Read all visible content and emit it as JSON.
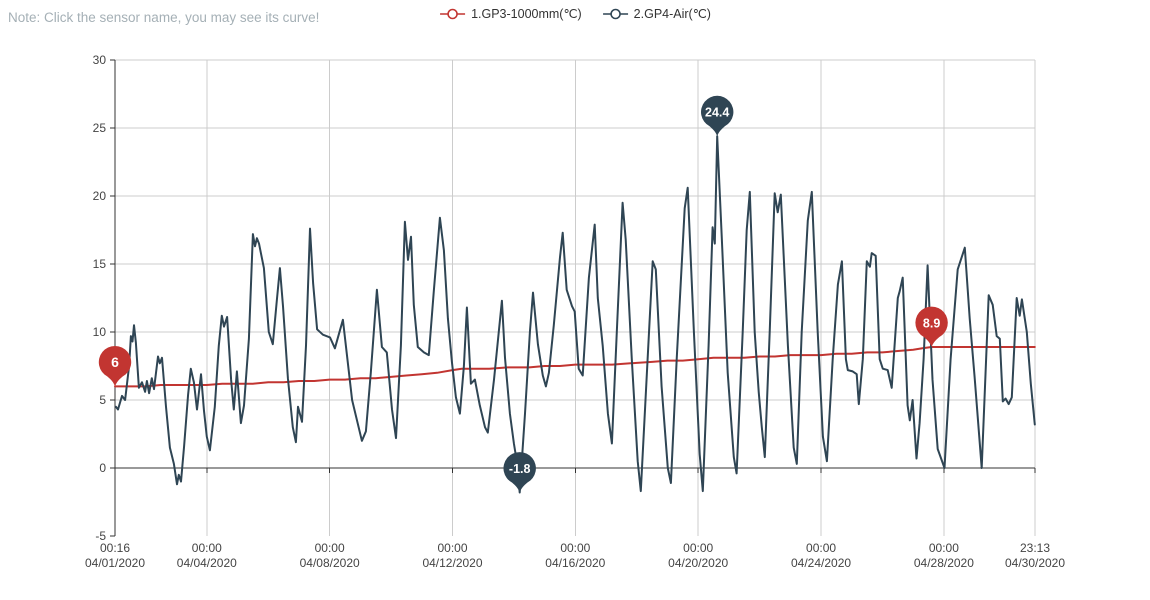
{
  "note": {
    "text": "Note: Click the sensor name, you may see its curve!"
  },
  "legend": {
    "items": [
      {
        "label": "1.GP3-1000mm(℃)",
        "color": "#c23531"
      },
      {
        "label": "2.GP4-Air(℃)",
        "color": "#2f4554"
      }
    ]
  },
  "chart_data": {
    "type": "line",
    "title": "",
    "x_axis": {
      "type": "time",
      "range": [
        0.011,
        29.967
      ],
      "ticks": [
        {
          "t": 0.011,
          "time": "00:16",
          "date": "04/01/2020"
        },
        {
          "t": 3,
          "time": "00:00",
          "date": "04/04/2020"
        },
        {
          "t": 7,
          "time": "00:00",
          "date": "04/08/2020"
        },
        {
          "t": 11,
          "time": "00:00",
          "date": "04/12/2020"
        },
        {
          "t": 15,
          "time": "00:00",
          "date": "04/16/2020"
        },
        {
          "t": 19,
          "time": "00:00",
          "date": "04/20/2020"
        },
        {
          "t": 23,
          "time": "00:00",
          "date": "04/24/2020"
        },
        {
          "t": 27,
          "time": "00:00",
          "date": "04/28/2020"
        },
        {
          "t": 29.967,
          "time": "23:13",
          "date": "04/30/2020"
        }
      ]
    },
    "y_axis": {
      "range": [
        -5,
        30
      ],
      "ticks": [
        30,
        25,
        20,
        15,
        10,
        5,
        0,
        -5
      ],
      "grid_at": [
        30,
        25,
        20,
        15,
        10,
        5
      ]
    },
    "colors": {
      "grid_light": "#cccccc",
      "axis_dark": "#333333",
      "label": "#444444"
    },
    "series": [
      {
        "name": "1.GP3-1000mm(℃)",
        "color": "#c23531",
        "points": [
          [
            0.01,
            6.0
          ],
          [
            0.5,
            6.0
          ],
          [
            1,
            6.0
          ],
          [
            1.5,
            6.1
          ],
          [
            2,
            6.1
          ],
          [
            2.5,
            6.1
          ],
          [
            3,
            6.1
          ],
          [
            3.5,
            6.2
          ],
          [
            4,
            6.2
          ],
          [
            4.5,
            6.2
          ],
          [
            5,
            6.3
          ],
          [
            5.5,
            6.3
          ],
          [
            6,
            6.4
          ],
          [
            6.5,
            6.4
          ],
          [
            7,
            6.5
          ],
          [
            7.5,
            6.5
          ],
          [
            8,
            6.6
          ],
          [
            8.5,
            6.6
          ],
          [
            9,
            6.7
          ],
          [
            9.5,
            6.8
          ],
          [
            10,
            6.9
          ],
          [
            10.5,
            7.0
          ],
          [
            11,
            7.2
          ],
          [
            11.3,
            7.3
          ],
          [
            11.8,
            7.3
          ],
          [
            12.2,
            7.3
          ],
          [
            12.8,
            7.4
          ],
          [
            13.5,
            7.4
          ],
          [
            14,
            7.5
          ],
          [
            14.5,
            7.5
          ],
          [
            15,
            7.6
          ],
          [
            15.5,
            7.6
          ],
          [
            16.2,
            7.6
          ],
          [
            16.8,
            7.7
          ],
          [
            17.5,
            7.8
          ],
          [
            18,
            7.9
          ],
          [
            18.5,
            7.9
          ],
          [
            19,
            8.0
          ],
          [
            19.5,
            8.1
          ],
          [
            20,
            8.1
          ],
          [
            20.5,
            8.1
          ],
          [
            21,
            8.2
          ],
          [
            21.5,
            8.2
          ],
          [
            22,
            8.3
          ],
          [
            22.5,
            8.3
          ],
          [
            23,
            8.3
          ],
          [
            23.5,
            8.4
          ],
          [
            24,
            8.4
          ],
          [
            24.5,
            8.5
          ],
          [
            25,
            8.5
          ],
          [
            25.5,
            8.6
          ],
          [
            26,
            8.7
          ],
          [
            26.3,
            8.8
          ],
          [
            26.6,
            8.9
          ],
          [
            27,
            8.9
          ],
          [
            27.5,
            8.9
          ],
          [
            28,
            8.9
          ],
          [
            28.5,
            8.9
          ],
          [
            29,
            8.9
          ],
          [
            29.5,
            8.9
          ],
          [
            29.96,
            8.9
          ]
        ]
      },
      {
        "name": "2.GP4-Air(℃)",
        "color": "#2f4554",
        "points": [
          [
            0.04,
            4.5
          ],
          [
            0.11,
            4.3
          ],
          [
            0.24,
            5.3
          ],
          [
            0.34,
            5.0
          ],
          [
            0.47,
            7.5
          ],
          [
            0.53,
            9.7
          ],
          [
            0.58,
            9.3
          ],
          [
            0.63,
            10.5
          ],
          [
            0.69,
            9.2
          ],
          [
            0.79,
            5.9
          ],
          [
            0.89,
            6.3
          ],
          [
            0.99,
            5.6
          ],
          [
            1.05,
            6.4
          ],
          [
            1.12,
            5.5
          ],
          [
            1.21,
            6.6
          ],
          [
            1.28,
            5.8
          ],
          [
            1.41,
            8.2
          ],
          [
            1.47,
            7.7
          ],
          [
            1.54,
            8.1
          ],
          [
            1.67,
            4.5
          ],
          [
            1.8,
            1.5
          ],
          [
            1.93,
            0.3
          ],
          [
            2.03,
            -1.2
          ],
          [
            2.09,
            -0.5
          ],
          [
            2.16,
            -1.0
          ],
          [
            2.26,
            1.6
          ],
          [
            2.39,
            5.4
          ],
          [
            2.48,
            7.3
          ],
          [
            2.58,
            6.3
          ],
          [
            2.68,
            4.3
          ],
          [
            2.81,
            6.9
          ],
          [
            2.91,
            4.2
          ],
          [
            3.0,
            2.3
          ],
          [
            3.1,
            1.3
          ],
          [
            3.26,
            4.5
          ],
          [
            3.39,
            9.0
          ],
          [
            3.49,
            11.2
          ],
          [
            3.56,
            10.4
          ],
          [
            3.66,
            11.1
          ],
          [
            3.79,
            6.5
          ],
          [
            3.88,
            4.3
          ],
          [
            3.98,
            7.1
          ],
          [
            4.11,
            3.3
          ],
          [
            4.21,
            4.6
          ],
          [
            4.37,
            9.5
          ],
          [
            4.5,
            17.2
          ],
          [
            4.57,
            16.3
          ],
          [
            4.63,
            16.9
          ],
          [
            4.7,
            16.5
          ],
          [
            4.86,
            14.7
          ],
          [
            5.02,
            10.0
          ],
          [
            5.15,
            9.1
          ],
          [
            5.28,
            12.3
          ],
          [
            5.38,
            14.7
          ],
          [
            5.48,
            11.9
          ],
          [
            5.64,
            6.6
          ],
          [
            5.8,
            3.0
          ],
          [
            5.9,
            1.9
          ],
          [
            5.97,
            4.5
          ],
          [
            6.1,
            3.4
          ],
          [
            6.23,
            9.0
          ],
          [
            6.36,
            17.6
          ],
          [
            6.46,
            13.6
          ],
          [
            6.59,
            10.2
          ],
          [
            6.78,
            9.8
          ],
          [
            7.01,
            9.6
          ],
          [
            7.17,
            8.8
          ],
          [
            7.43,
            10.9
          ],
          [
            7.73,
            5.0
          ],
          [
            8.05,
            2.0
          ],
          [
            8.18,
            2.7
          ],
          [
            8.34,
            7.0
          ],
          [
            8.54,
            13.1
          ],
          [
            8.7,
            8.9
          ],
          [
            8.86,
            8.5
          ],
          [
            9.03,
            4.3
          ],
          [
            9.16,
            2.2
          ],
          [
            9.32,
            9.0
          ],
          [
            9.45,
            18.1
          ],
          [
            9.55,
            15.3
          ],
          [
            9.65,
            17.0
          ],
          [
            9.74,
            12.0
          ],
          [
            9.87,
            8.9
          ],
          [
            10.07,
            8.5
          ],
          [
            10.23,
            8.3
          ],
          [
            10.39,
            13.0
          ],
          [
            10.59,
            18.4
          ],
          [
            10.72,
            16.0
          ],
          [
            10.85,
            11.0
          ],
          [
            10.98,
            7.8
          ],
          [
            11.11,
            5.2
          ],
          [
            11.24,
            4.0
          ],
          [
            11.37,
            7.5
          ],
          [
            11.47,
            11.8
          ],
          [
            11.6,
            6.2
          ],
          [
            11.73,
            6.5
          ],
          [
            11.89,
            4.6
          ],
          [
            12.06,
            3.0
          ],
          [
            12.15,
            2.6
          ],
          [
            12.35,
            6.5
          ],
          [
            12.61,
            12.3
          ],
          [
            12.71,
            8.1
          ],
          [
            12.87,
            4.0
          ],
          [
            13.0,
            1.8
          ],
          [
            13.1,
            0.4
          ],
          [
            13.19,
            -1.8
          ],
          [
            13.36,
            4.0
          ],
          [
            13.52,
            10.0
          ],
          [
            13.62,
            12.9
          ],
          [
            13.78,
            9.1
          ],
          [
            13.94,
            6.8
          ],
          [
            14.04,
            6.0
          ],
          [
            14.14,
            7.0
          ],
          [
            14.3,
            10.5
          ],
          [
            14.5,
            15.5
          ],
          [
            14.59,
            17.3
          ],
          [
            14.72,
            13.1
          ],
          [
            14.89,
            11.9
          ],
          [
            14.98,
            11.5
          ],
          [
            15.11,
            7.3
          ],
          [
            15.24,
            6.8
          ],
          [
            15.44,
            14.0
          ],
          [
            15.63,
            17.9
          ],
          [
            15.73,
            12.5
          ],
          [
            15.89,
            9.0
          ],
          [
            16.06,
            4.0
          ],
          [
            16.19,
            1.8
          ],
          [
            16.35,
            10.0
          ],
          [
            16.54,
            19.5
          ],
          [
            16.64,
            16.8
          ],
          [
            16.84,
            8.0
          ],
          [
            17.03,
            0.5
          ],
          [
            17.13,
            -1.7
          ],
          [
            17.33,
            7.0
          ],
          [
            17.52,
            15.2
          ],
          [
            17.62,
            14.6
          ],
          [
            17.81,
            6.0
          ],
          [
            18.01,
            0.0
          ],
          [
            18.11,
            -1.1
          ],
          [
            18.3,
            8.0
          ],
          [
            18.56,
            19.1
          ],
          [
            18.66,
            20.6
          ],
          [
            18.86,
            10.0
          ],
          [
            19.05,
            1.0
          ],
          [
            19.15,
            -1.7
          ],
          [
            19.34,
            9.0
          ],
          [
            19.47,
            17.7
          ],
          [
            19.54,
            16.5
          ],
          [
            19.62,
            24.4
          ],
          [
            19.77,
            16.9
          ],
          [
            19.96,
            7.0
          ],
          [
            20.16,
            0.8
          ],
          [
            20.25,
            -0.4
          ],
          [
            20.45,
            10.0
          ],
          [
            20.58,
            17.5
          ],
          [
            20.68,
            20.3
          ],
          [
            20.84,
            10.0
          ],
          [
            20.97,
            5.6
          ],
          [
            21.07,
            3.0
          ],
          [
            21.17,
            0.8
          ],
          [
            21.33,
            10.0
          ],
          [
            21.49,
            20.2
          ],
          [
            21.59,
            18.8
          ],
          [
            21.69,
            20.1
          ],
          [
            21.92,
            9.0
          ],
          [
            22.11,
            1.5
          ],
          [
            22.21,
            0.3
          ],
          [
            22.37,
            10.0
          ],
          [
            22.57,
            18.2
          ],
          [
            22.7,
            20.3
          ],
          [
            22.89,
            10.0
          ],
          [
            23.06,
            2.3
          ],
          [
            23.19,
            0.5
          ],
          [
            23.38,
            8.0
          ],
          [
            23.55,
            13.5
          ],
          [
            23.68,
            15.2
          ],
          [
            23.81,
            8.0
          ],
          [
            23.87,
            7.2
          ],
          [
            24.03,
            7.1
          ],
          [
            24.16,
            6.9
          ],
          [
            24.23,
            4.7
          ],
          [
            24.36,
            8.0
          ],
          [
            24.49,
            15.2
          ],
          [
            24.59,
            14.8
          ],
          [
            24.65,
            15.8
          ],
          [
            24.78,
            15.6
          ],
          [
            24.91,
            8.0
          ],
          [
            25.01,
            7.3
          ],
          [
            25.17,
            7.2
          ],
          [
            25.3,
            5.9
          ],
          [
            25.5,
            12.5
          ],
          [
            25.56,
            13.0
          ],
          [
            25.66,
            14.0
          ],
          [
            25.82,
            4.6
          ],
          [
            25.89,
            3.5
          ],
          [
            25.98,
            5.0
          ],
          [
            26.11,
            0.7
          ],
          [
            26.21,
            3.3
          ],
          [
            26.34,
            8.0
          ],
          [
            26.47,
            14.9
          ],
          [
            26.63,
            6.5
          ],
          [
            26.8,
            1.4
          ],
          [
            27.02,
            0.0
          ],
          [
            27.22,
            8.0
          ],
          [
            27.45,
            14.6
          ],
          [
            27.58,
            15.5
          ],
          [
            27.68,
            16.2
          ],
          [
            27.84,
            11.0
          ],
          [
            28.0,
            6.7
          ],
          [
            28.23,
            0.0
          ],
          [
            28.46,
            12.7
          ],
          [
            28.59,
            12.0
          ],
          [
            28.72,
            9.7
          ],
          [
            28.82,
            9.5
          ],
          [
            28.92,
            4.9
          ],
          [
            29.01,
            5.1
          ],
          [
            29.11,
            4.7
          ],
          [
            29.21,
            5.2
          ],
          [
            29.37,
            12.5
          ],
          [
            29.47,
            11.2
          ],
          [
            29.54,
            12.4
          ],
          [
            29.7,
            10.0
          ],
          [
            29.83,
            6.2
          ],
          [
            29.96,
            3.2
          ]
        ]
      }
    ],
    "markers": [
      {
        "series": 0,
        "kind": "min",
        "label": "6",
        "t": 0.011,
        "v": 6.0
      },
      {
        "series": 0,
        "kind": "max",
        "label": "8.9",
        "t": 26.6,
        "v": 8.9
      },
      {
        "series": 1,
        "kind": "max",
        "label": "24.4",
        "t": 19.62,
        "v": 24.4
      },
      {
        "series": 1,
        "kind": "min",
        "label": "-1.8",
        "t": 13.19,
        "v": -1.8
      }
    ]
  }
}
